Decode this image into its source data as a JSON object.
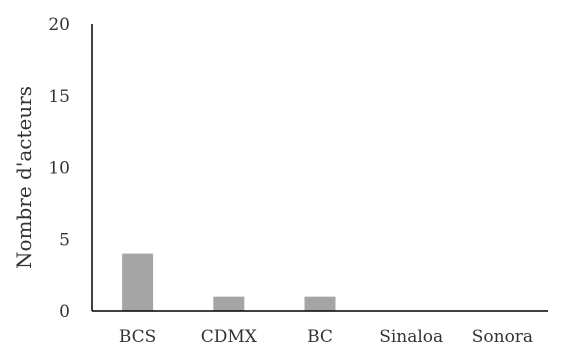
{
  "chart_data": {
    "type": "bar",
    "categories": [
      "BCS",
      "CDMX",
      "BC",
      "Sinaloa",
      "Sonora"
    ],
    "values": [
      4,
      1,
      1,
      0,
      0
    ],
    "title": "",
    "xlabel": "",
    "ylabel": "Nombre d'acteurs",
    "ylim": [
      0,
      20
    ],
    "yticks": [
      "0",
      "5",
      "10",
      "15",
      "20"
    ],
    "grid": false,
    "legend": "none",
    "bar_color": "#a5a5a5",
    "axis_color": "#000000"
  }
}
